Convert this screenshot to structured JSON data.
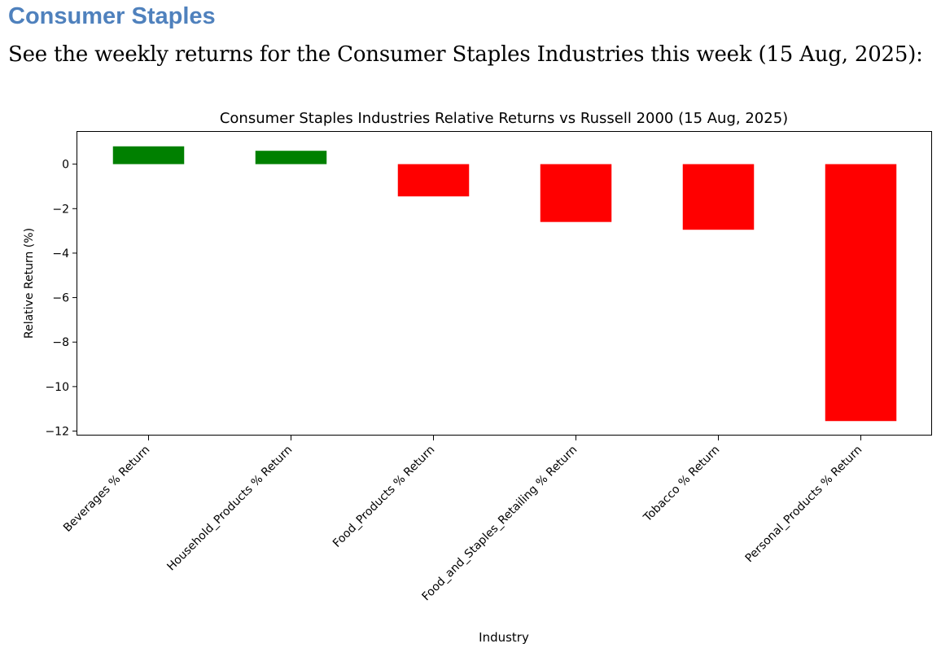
{
  "header": {
    "section_title": "Consumer Staples",
    "intro": "See the weekly returns for the Consumer Staples Industries this week (15 Aug, 2025):"
  },
  "colors": {
    "heading": "#4f81bd",
    "positive_bar": "#008000",
    "negative_bar": "#ff0000"
  },
  "chart_data": {
    "type": "bar",
    "title": "Consumer Staples Industries Relative Returns vs Russell 2000 (15 Aug, 2025)",
    "xlabel": "Industry",
    "ylabel": "Relative Return (%)",
    "ylim": [
      -12.2,
      1.45
    ],
    "yticks": [
      0,
      -2,
      -4,
      -6,
      -8,
      -10,
      -12
    ],
    "ytick_labels": [
      "0",
      "−2",
      "−4",
      "−6",
      "−8",
      "−10",
      "−12"
    ],
    "categories": [
      "Beverages % Return",
      "Household_Products % Return",
      "Food_Products % Return",
      "Food_and_Staples_Retailing % Return",
      "Tobacco % Return",
      "Personal_Products % Return"
    ],
    "values": [
      0.8,
      0.6,
      -1.45,
      -2.6,
      -2.95,
      -11.55
    ],
    "legend": "none",
    "grid": false
  }
}
